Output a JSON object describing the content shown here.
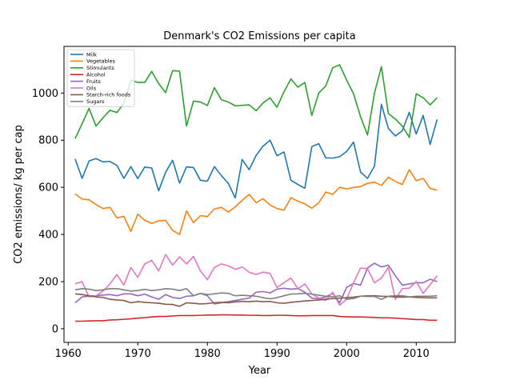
{
  "chart_data": {
    "type": "line",
    "title": "Denmark's CO2 Emissions per capita",
    "xlabel": "Year",
    "ylabel": "CO2 emissions/ kg per cap",
    "xlim": [
      1959.4,
      2015.6
    ],
    "ylim": [
      -58,
      1198
    ],
    "xticks": [
      1960,
      1970,
      1980,
      1990,
      2000,
      2010
    ],
    "yticks": [
      0,
      200,
      400,
      600,
      800,
      1000
    ],
    "grid": false,
    "legend_position": "top-left",
    "x": [
      1961,
      1962,
      1963,
      1964,
      1965,
      1966,
      1967,
      1968,
      1969,
      1970,
      1971,
      1972,
      1973,
      1974,
      1975,
      1976,
      1977,
      1978,
      1979,
      1980,
      1981,
      1982,
      1983,
      1984,
      1985,
      1986,
      1987,
      1988,
      1989,
      1990,
      1991,
      1992,
      1993,
      1994,
      1995,
      1996,
      1997,
      1998,
      1999,
      2000,
      2001,
      2002,
      2003,
      2004,
      2005,
      2006,
      2007,
      2008,
      2009,
      2010,
      2011,
      2012,
      2013
    ],
    "series": [
      {
        "name": "Milk",
        "color": "#1f77b4",
        "values": [
          720,
          638,
          712,
          722,
          708,
          710,
          693,
          638,
          688,
          637,
          686,
          682,
          585,
          664,
          715,
          618,
          687,
          684,
          630,
          626,
          688,
          650,
          617,
          555,
          718,
          675,
          735,
          775,
          800,
          734,
          750,
          630,
          612,
          596,
          773,
          785,
          725,
          724,
          730,
          752,
          792,
          665,
          638,
          690,
          952,
          850,
          818,
          840,
          918,
          826,
          905,
          782,
          888
        ]
      },
      {
        "name": "Vegetables",
        "color": "#ff7f0e",
        "values": [
          572,
          550,
          547,
          527,
          510,
          515,
          470,
          477,
          413,
          486,
          460,
          447,
          458,
          460,
          417,
          400,
          500,
          450,
          480,
          476,
          508,
          515,
          495,
          517,
          545,
          570,
          535,
          552,
          525,
          510,
          503,
          556,
          541,
          530,
          511,
          535,
          580,
          570,
          600,
          593,
          600,
          603,
          617,
          622,
          608,
          643,
          625,
          612,
          675,
          628,
          638,
          595,
          588
        ]
      },
      {
        "name": "Stimulants",
        "color": "#2ca02c",
        "values": [
          807,
          870,
          935,
          860,
          895,
          927,
          917,
          957,
          1055,
          1045,
          1045,
          1092,
          1040,
          1002,
          1095,
          1093,
          860,
          966,
          962,
          947,
          1023,
          972,
          962,
          946,
          948,
          950,
          925,
          958,
          980,
          940,
          1005,
          1060,
          1025,
          1045,
          905,
          1000,
          1030,
          1107,
          1120,
          1055,
          997,
          900,
          822,
          1000,
          1112,
          913,
          890,
          860,
          812,
          997,
          980,
          950,
          980
        ]
      },
      {
        "name": "Alcohol",
        "color": "#d62728",
        "values": [
          32,
          32,
          33,
          34,
          34,
          37,
          38,
          40,
          42,
          45,
          47,
          50,
          52,
          52,
          54,
          56,
          56,
          56,
          57,
          58,
          58,
          59,
          59,
          58,
          58,
          57,
          57,
          56,
          56,
          57,
          57,
          56,
          55,
          55,
          56,
          56,
          56,
          56,
          52,
          51,
          50,
          50,
          49,
          48,
          46,
          46,
          45,
          43,
          41,
          39,
          39,
          36,
          36
        ]
      },
      {
        "name": "Fruits",
        "color": "#9467bd",
        "values": [
          110,
          135,
          138,
          140,
          143,
          145,
          140,
          148,
          148,
          140,
          147,
          135,
          125,
          145,
          133,
          128,
          138,
          140,
          150,
          140,
          105,
          110,
          115,
          120,
          125,
          130,
          155,
          158,
          152,
          168,
          172,
          168,
          170,
          155,
          130,
          127,
          135,
          150,
          110,
          175,
          192,
          185,
          258,
          278,
          262,
          270,
          225,
          185,
          190,
          195,
          195,
          210,
          200
        ]
      },
      {
        "name": "Oils",
        "color": "#e377c2",
        "values": [
          190,
          200,
          135,
          140,
          160,
          190,
          230,
          185,
          260,
          218,
          275,
          290,
          245,
          315,
          270,
          305,
          275,
          307,
          245,
          208,
          260,
          275,
          267,
          252,
          262,
          240,
          230,
          240,
          235,
          175,
          195,
          215,
          170,
          190,
          148,
          130,
          120,
          155,
          100,
          125,
          195,
          258,
          255,
          195,
          215,
          260,
          125,
          170,
          172,
          200,
          150,
          187,
          225
        ]
      },
      {
        "name": "Starch-rich foods",
        "color": "#8c564b",
        "values": [
          148,
          145,
          140,
          135,
          133,
          125,
          122,
          120,
          110,
          115,
          112,
          110,
          108,
          104,
          103,
          95,
          110,
          108,
          105,
          107,
          110,
          112,
          110,
          114,
          116,
          115,
          117,
          115,
          116,
          110,
          108,
          112,
          115,
          118,
          120,
          122,
          125,
          128,
          130,
          132,
          134,
          138,
          140,
          140,
          138,
          137,
          135,
          134,
          135,
          133,
          132,
          131,
          131
        ]
      },
      {
        "name": "Sugars",
        "color": "#7f7f7f",
        "values": [
          165,
          170,
          168,
          162,
          165,
          170,
          170,
          165,
          160,
          162,
          167,
          162,
          165,
          170,
          168,
          162,
          170,
          140,
          150,
          145,
          148,
          152,
          150,
          140,
          142,
          140,
          138,
          132,
          127,
          132,
          140,
          147,
          148,
          150,
          147,
          142,
          138,
          135,
          140,
          125,
          128,
          138,
          137,
          137,
          125,
          138,
          140,
          140,
          135,
          138,
          138,
          138,
          140
        ]
      }
    ]
  }
}
